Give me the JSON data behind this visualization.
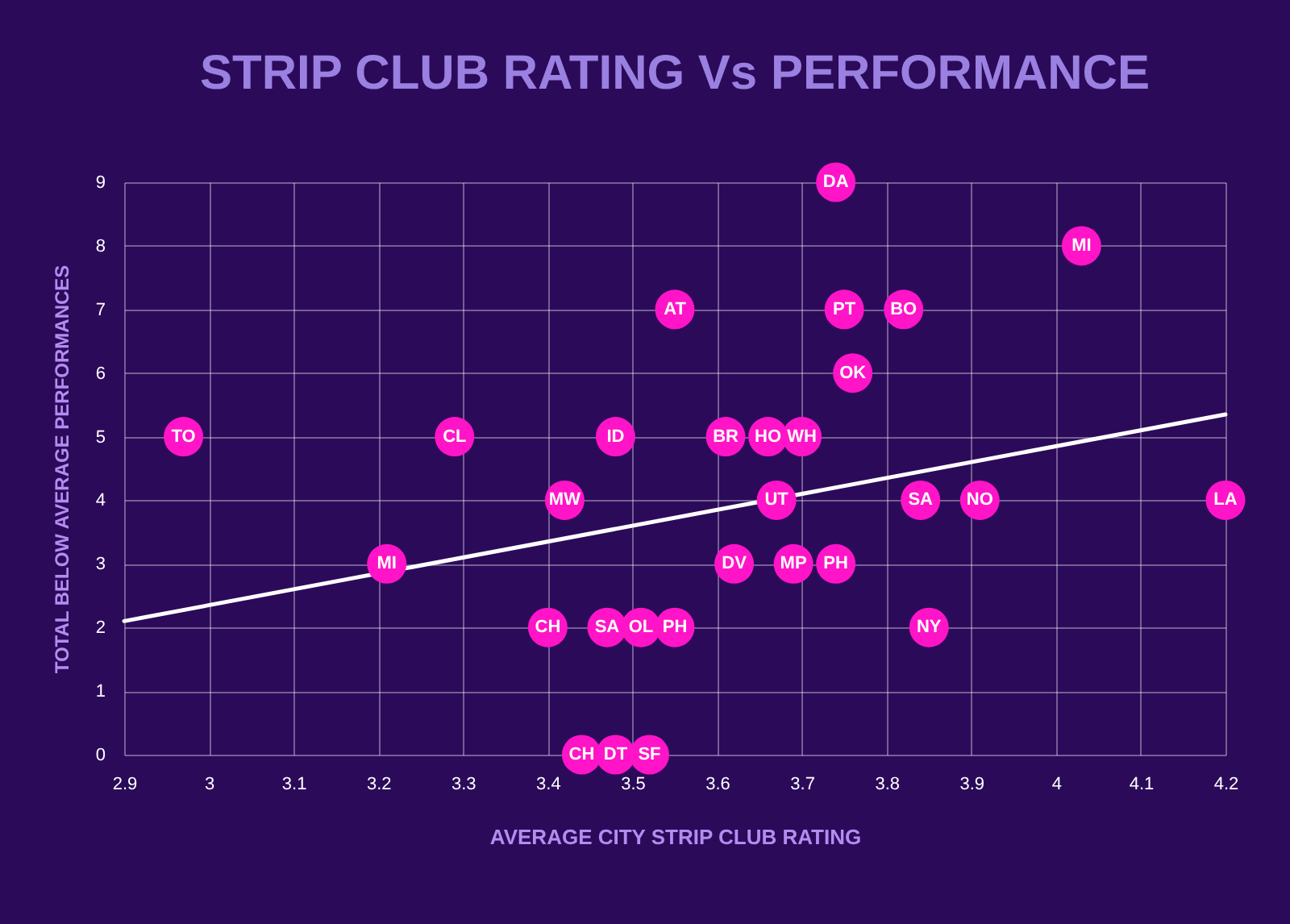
{
  "chart_data": {
    "type": "scatter",
    "title": "STRIP CLUB RATING Vs PERFORMANCE",
    "xlabel": "AVERAGE CITY STRIP CLUB RATING",
    "ylabel": "TOTAL BELOW AVERAGE PERFORMANCES",
    "xlim": [
      2.9,
      4.2
    ],
    "xticks": [
      2.9,
      3,
      3.1,
      3.2,
      3.3,
      3.4,
      3.5,
      3.6,
      3.7,
      3.8,
      3.9,
      4,
      4.1,
      4.2
    ],
    "ylim": [
      0,
      9
    ],
    "yticks": [
      0,
      1,
      2,
      3,
      4,
      5,
      6,
      7,
      8,
      9
    ],
    "grid": true,
    "marker": "circle",
    "series": [
      {
        "color": "#ff14c8",
        "x": [
          2.97,
          3.29,
          3.48,
          3.55,
          3.42,
          3.21,
          3.4,
          3.47,
          3.51,
          3.55,
          3.44,
          3.48,
          3.52,
          3.74,
          4.03,
          3.75,
          3.82,
          3.76,
          3.61,
          3.66,
          3.7,
          3.67,
          3.84,
          3.91,
          4.2,
          3.62,
          3.69,
          3.74,
          3.85
        ],
        "values": [
          5,
          5,
          5,
          7,
          4,
          3,
          2,
          2,
          2,
          2,
          0,
          0,
          0,
          9,
          8,
          7,
          7,
          6,
          5,
          5,
          5,
          4,
          4,
          4,
          4,
          3,
          3,
          3,
          2
        ]
      },
      {
        "type": "line",
        "marker": "none",
        "color": "#ffffff",
        "x": [
          2.9,
          4.2
        ],
        "values": [
          2.1,
          5.35
        ]
      }
    ],
    "annotations": [
      {
        "text": "TO",
        "x": 2.97,
        "y": 5
      },
      {
        "text": "CL",
        "x": 3.29,
        "y": 5
      },
      {
        "text": "ID",
        "x": 3.48,
        "y": 5
      },
      {
        "text": "AT",
        "x": 3.55,
        "y": 7
      },
      {
        "text": "MW",
        "x": 3.42,
        "y": 4
      },
      {
        "text": "MI",
        "x": 3.21,
        "y": 3
      },
      {
        "text": "CH",
        "x": 3.4,
        "y": 2
      },
      {
        "text": "SA",
        "x": 3.47,
        "y": 2
      },
      {
        "text": "OL",
        "x": 3.51,
        "y": 2
      },
      {
        "text": "PH",
        "x": 3.55,
        "y": 2
      },
      {
        "text": "CH",
        "x": 3.44,
        "y": 0
      },
      {
        "text": "DT",
        "x": 3.48,
        "y": 0
      },
      {
        "text": "SF",
        "x": 3.52,
        "y": 0
      },
      {
        "text": "DA",
        "x": 3.74,
        "y": 9
      },
      {
        "text": "MI",
        "x": 4.03,
        "y": 8
      },
      {
        "text": "PT",
        "x": 3.75,
        "y": 7
      },
      {
        "text": "BO",
        "x": 3.82,
        "y": 7
      },
      {
        "text": "OK",
        "x": 3.76,
        "y": 6
      },
      {
        "text": "BR",
        "x": 3.61,
        "y": 5
      },
      {
        "text": "HO",
        "x": 3.66,
        "y": 5
      },
      {
        "text": "WH",
        "x": 3.7,
        "y": 5
      },
      {
        "text": "UT",
        "x": 3.67,
        "y": 4
      },
      {
        "text": "SA",
        "x": 3.84,
        "y": 4
      },
      {
        "text": "NO",
        "x": 3.91,
        "y": 4
      },
      {
        "text": "LA",
        "x": 4.2,
        "y": 4
      },
      {
        "text": "DV",
        "x": 3.62,
        "y": 3
      },
      {
        "text": "MP",
        "x": 3.69,
        "y": 3
      },
      {
        "text": "PH",
        "x": 3.74,
        "y": 3
      },
      {
        "text": "NY",
        "x": 3.85,
        "y": 2
      }
    ]
  }
}
